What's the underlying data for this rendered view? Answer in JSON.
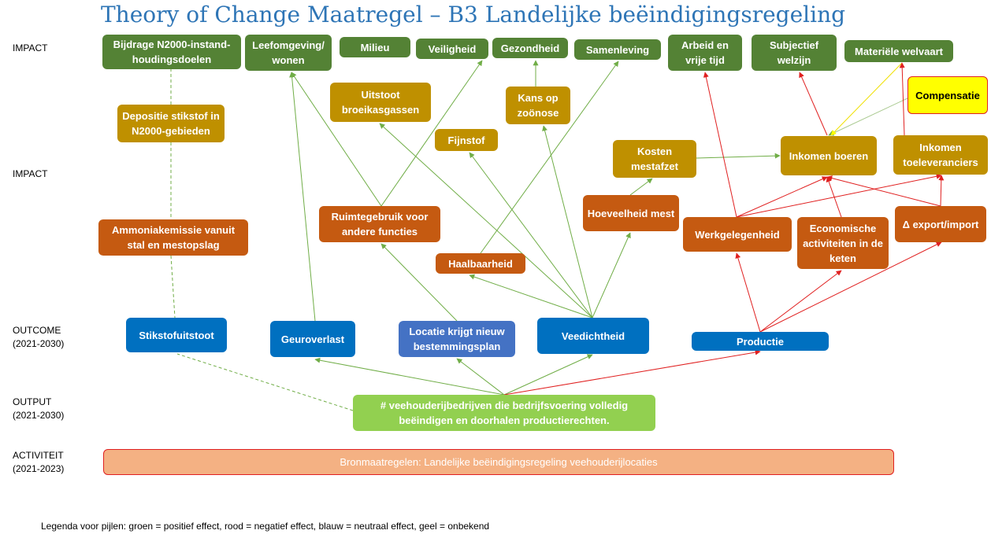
{
  "title": "Theory of Change Maatregel – B3 Landelijke beëindigingsregeling",
  "row_labels": [
    {
      "lines": [
        "IMPACT"
      ]
    },
    {
      "lines": [
        "IMPACT"
      ]
    },
    {
      "lines": [
        "OUTCOME",
        "(2021-2030)"
      ]
    },
    {
      "lines": [
        "OUTPUT",
        "(2021-2030)"
      ]
    },
    {
      "lines": [
        "ACTIVITEIT",
        "(2021-2023)"
      ]
    }
  ],
  "nodes": [
    {
      "label": "Bijdrage N2000-instand-houdingsdoelen"
    },
    {
      "label": "Leefomgeving/ wonen"
    },
    {
      "label": "Milieu"
    },
    {
      "label": "Veiligheid"
    },
    {
      "label": "Gezondheid"
    },
    {
      "label": "Samenleving"
    },
    {
      "label": "Arbeid en vrije tijd"
    },
    {
      "label": "Subjectief welzijn"
    },
    {
      "label": "Materiële welvaart"
    },
    {
      "label": "Uitstoot broeikasgassen"
    },
    {
      "label": "Kans op zoönose"
    },
    {
      "label": "Depositie stikstof in N2000-gebieden"
    },
    {
      "label": "Fijnstof"
    },
    {
      "label": "Kosten mestafzet"
    },
    {
      "label": "Inkomen boeren"
    },
    {
      "label": "Inkomen toeleveranciers"
    },
    {
      "label": "Compensatie"
    },
    {
      "label": "Ruimtegebruik voor andere functies"
    },
    {
      "label": "Hoeveelheid mest"
    },
    {
      "label": "Ammoniakemissie vanuit stal en mestopslag"
    },
    {
      "label": "Werkgelegenheid"
    },
    {
      "label": "Economische activiteiten in de keten"
    },
    {
      "label": "Δ export/import"
    },
    {
      "label": "Haalbaarheid"
    },
    {
      "label": "Stikstofuitstoot"
    },
    {
      "label": "Geuroverlast"
    },
    {
      "label": "Locatie krijgt nieuw bestemmingsplan"
    },
    {
      "label": "Veedichtheid"
    },
    {
      "label": "Productie"
    },
    {
      "label": "# veehouderijbedrijven die bedrijfsvoering volledig beëindigen en doorhalen productierechten."
    },
    {
      "label": "Bronmaatregelen: Landelijke beëindigingsregeling veehouderijlocaties"
    }
  ],
  "legend": "Legenda voor pijlen: groen = positief effect, rood = negatief effect, blauw = neutraal effect, geel = onbekend"
}
